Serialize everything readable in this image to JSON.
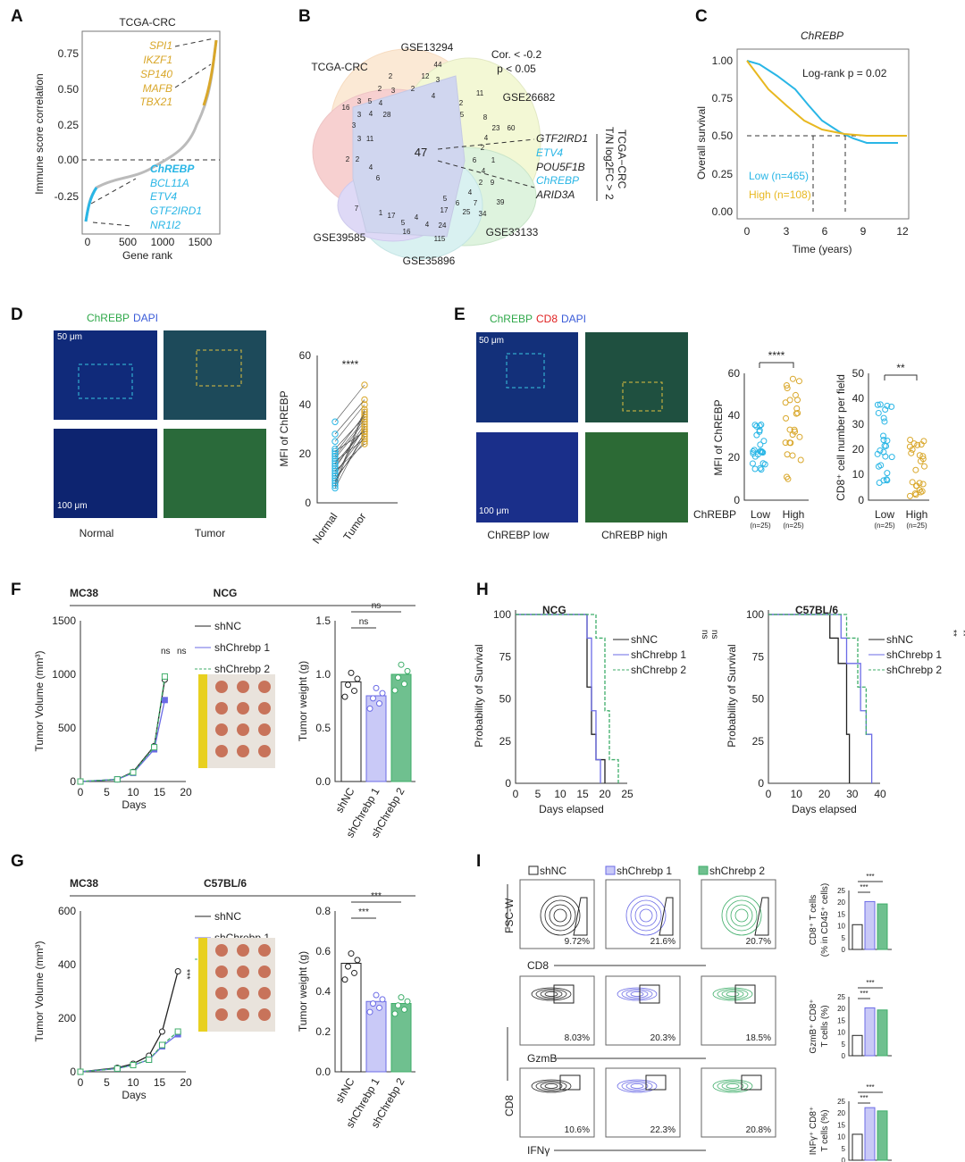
{
  "panel_labels": [
    "A",
    "B",
    "C",
    "D",
    "E",
    "F",
    "G",
    "H",
    "I"
  ],
  "A": {
    "title": "TCGA-CRC",
    "ylabel": "Immune score correlation",
    "xlabel": "Gene rank",
    "yticks": [
      "0.75",
      "0.50",
      "0.25",
      "0.00",
      "-0.25"
    ],
    "xticks": [
      "0",
      "500",
      "1000",
      "1500"
    ],
    "positive_genes": [
      "SPI1",
      "IKZF1",
      "SP140",
      "MAFB",
      "TBX21"
    ],
    "negative_genes": [
      "ChREBP",
      "BCL11A",
      "ETV4",
      "GTF2IRD1",
      "NR1I2"
    ],
    "colors": {
      "positive": "#d9a72a",
      "negative": "#29b6e6",
      "middle": "#bbbbbb"
    }
  },
  "B": {
    "sets": [
      "TCGA-CRC",
      "GSE13294",
      "GSE26682",
      "GSE33133",
      "GSE35896",
      "GSE39585"
    ],
    "criteria": [
      "Cor. < -0.2",
      "p < 0.05"
    ],
    "center_count": "47",
    "region_counts": [
      "44",
      "12",
      "2",
      "3",
      "2",
      "2",
      "3",
      "4",
      "11",
      "2",
      "16",
      "3",
      "5",
      "4",
      "28",
      "5",
      "8",
      "23",
      "60",
      "3",
      "4",
      "3",
      "3",
      "11",
      "4",
      "2",
      "2",
      "2",
      "4",
      "6",
      "6",
      "1",
      "4",
      "2",
      "9",
      "39",
      "4",
      "7",
      "5",
      "6",
      "7",
      "1",
      "17",
      "17",
      "25",
      "34",
      "5",
      "4",
      "16",
      "4",
      "24",
      "115"
    ],
    "genes": [
      {
        "name": "GTF2IRD1",
        "color": "#222222"
      },
      {
        "name": "ETV4",
        "color": "#29b6e6"
      },
      {
        "name": "POU5F1B",
        "color": "#222222"
      },
      {
        "name": "ChREBP",
        "color": "#29b6e6"
      },
      {
        "name": "ARID3A",
        "color": "#222222"
      }
    ],
    "side_label_1": "TCGA−CRC",
    "side_label_2": "T/N log2FC > 2"
  },
  "C": {
    "title": "ChREBP",
    "stat": "Log-rank p = 0.02",
    "ylabel": "Overall survival",
    "xlabel": "Time (years)",
    "yticks": [
      "1.00",
      "0.75",
      "0.50",
      "0.25",
      "0.00"
    ],
    "xticks": [
      "0",
      "3",
      "6",
      "9",
      "12"
    ],
    "legend": [
      {
        "label": "Low (n=465)",
        "color": "#29b6e6"
      },
      {
        "label": "High (n=108)",
        "color": "#e8b820"
      }
    ]
  },
  "D": {
    "stain_1": "ChREBP",
    "stain_2": "DAPI",
    "scale_top": "50 μm",
    "scale_bottom": "100 μm",
    "col_labels": [
      "Normal",
      "Tumor"
    ],
    "ylabel": "MFI of ChREBP",
    "yticks": [
      "60",
      "40",
      "20",
      "0"
    ],
    "xticks": [
      "Normal",
      "Tumor"
    ],
    "significance": "****"
  },
  "E": {
    "stain_1": "ChREBP",
    "stain_2": "CD8",
    "stain_3": "DAPI",
    "scale_top": "50 μm",
    "scale_bottom": "100 μm",
    "col_labels": [
      "ChREBP low",
      "ChREBP high"
    ],
    "group_label": "ChREBP",
    "groups": [
      "Low",
      "High"
    ],
    "n": [
      "(n=25)",
      "(n=25)"
    ],
    "plot1": {
      "ylabel": "MFI of ChREBP",
      "yticks": [
        "60",
        "40",
        "20",
        "0"
      ],
      "significance": "****"
    },
    "plot2": {
      "ylabel": "CD8⁺ cell number per field",
      "yticks": [
        "50",
        "40",
        "30",
        "20",
        "10",
        "0"
      ],
      "significance": "**"
    }
  },
  "F": {
    "model": "MC38",
    "host": "NCG",
    "ylabel": "Tumor Volume (mm³)",
    "yticks": [
      "1500",
      "1000",
      "500",
      "0"
    ],
    "xlabel": "Days",
    "xticks": [
      "0",
      "5",
      "10",
      "15",
      "20"
    ],
    "legend": [
      "shNC",
      "shChrebp 1",
      "shChrebp 2"
    ],
    "sig": [
      "ns",
      "ns"
    ],
    "bar_ylabel": "Tumor weight (g)",
    "bar_yticks": [
      "1.5",
      "1.0",
      "0.5",
      "0.0"
    ],
    "bar_sig": [
      "ns",
      "ns"
    ]
  },
  "G": {
    "model": "MC38",
    "host": "C57BL/6",
    "ylabel": "Tumor Volume (mm³)",
    "yticks": [
      "600",
      "400",
      "200",
      "0"
    ],
    "xlabel": "Days",
    "xticks": [
      "0",
      "5",
      "10",
      "15",
      "20"
    ],
    "legend": [
      "shNC",
      "shChrebp 1",
      "shChrebp 2"
    ],
    "sig": [
      "***",
      "***"
    ],
    "bar_ylabel": "Tumor weight (g)",
    "bar_yticks": [
      "0.8",
      "0.6",
      "0.4",
      "0.2",
      "0.0"
    ],
    "bar_sig": [
      "***",
      "***"
    ]
  },
  "H": {
    "left_title": "NCG",
    "right_title": "C57BL/6",
    "ylabel": "Probability of Survival",
    "yticks": [
      "100",
      "75",
      "50",
      "25",
      "0"
    ],
    "xlabel": "Days elapsed",
    "left_xticks": [
      "0",
      "5",
      "10",
      "15",
      "20",
      "25"
    ],
    "right_xticks": [
      "0",
      "10",
      "20",
      "30",
      "40"
    ],
    "legend": [
      "shNC",
      "shChrebp 1",
      "shChrebp 2"
    ],
    "left_sig": [
      "ns",
      "ns"
    ],
    "right_sig": [
      "**",
      "**"
    ]
  },
  "I": {
    "legend": [
      "shNC",
      "shChrebp 1",
      "shChrebp 2"
    ],
    "row_x_labels": [
      "CD8",
      "GzmB",
      "IFNγ"
    ],
    "y_labels": [
      "FSC-W",
      "CD8"
    ],
    "percentages": [
      [
        "9.72%",
        "21.6%",
        "20.7%"
      ],
      [
        "8.03%",
        "20.3%",
        "18.5%"
      ],
      [
        "10.6%",
        "22.3%",
        "20.8%"
      ]
    ],
    "bar_ylabels": [
      [
        "CD8⁺ T cells",
        "(% in CD45⁺ cells)"
      ],
      [
        "GzmB⁺ CD8⁺",
        "T cells (%)"
      ],
      [
        "INFγ⁺ CD8⁺",
        "T cells (%)"
      ]
    ],
    "bar_yticks": [
      "25",
      "20",
      "15",
      "10",
      "5",
      "0"
    ],
    "bar_sig": "***"
  },
  "colors": {
    "shNC": "#222222",
    "shChrebp1": "#6b6be6",
    "shChrebp2": "#3fae6a",
    "bar1": "#c9c9f7",
    "bar2": "#6fc08f"
  },
  "chart_data": [
    {
      "panel": "F-bar",
      "type": "bar",
      "categories": [
        "shNC",
        "shChrebp 1",
        "shChrebp 2"
      ],
      "values": [
        0.93,
        0.8,
        1.0
      ],
      "ylim": [
        0,
        1.5
      ],
      "ylabel": "Tumor weight (g)"
    },
    {
      "panel": "G-bar",
      "type": "bar",
      "categories": [
        "shNC",
        "shChrebp 1",
        "shChrebp 2"
      ],
      "values": [
        0.54,
        0.35,
        0.34
      ],
      "ylim": [
        0,
        0.8
      ],
      "ylabel": "Tumor weight (g)"
    },
    {
      "panel": "F-line",
      "type": "line",
      "x": [
        0,
        7,
        10,
        14,
        16
      ],
      "series": [
        {
          "name": "shNC",
          "values": [
            0,
            20,
            90,
            330,
            950
          ]
        },
        {
          "name": "shChrebp 1",
          "values": [
            0,
            20,
            80,
            300,
            760
          ]
        },
        {
          "name": "shChrebp 2",
          "values": [
            0,
            20,
            85,
            320,
            980
          ]
        }
      ],
      "ylim": [
        0,
        1500
      ],
      "xlim": [
        0,
        20
      ]
    },
    {
      "panel": "G-line",
      "type": "line",
      "x": [
        0,
        7,
        10,
        13,
        15.5,
        18.5
      ],
      "series": [
        {
          "name": "shNC",
          "values": [
            0,
            15,
            30,
            60,
            150,
            375
          ]
        },
        {
          "name": "shChrebp 1",
          "values": [
            0,
            12,
            25,
            45,
            95,
            140
          ]
        },
        {
          "name": "shChrebp 2",
          "values": [
            0,
            12,
            25,
            45,
            100,
            150
          ]
        }
      ],
      "ylim": [
        0,
        600
      ],
      "xlim": [
        0,
        20
      ]
    },
    {
      "panel": "I-bar-1",
      "type": "bar",
      "categories": [
        "shNC",
        "shChrebp 1",
        "shChrebp 2"
      ],
      "values": [
        10.5,
        20.3,
        19.3
      ],
      "ylim": [
        0,
        25
      ]
    },
    {
      "panel": "I-bar-2",
      "type": "bar",
      "categories": [
        "shNC",
        "shChrebp 1",
        "shChrebp 2"
      ],
      "values": [
        8.6,
        20.3,
        19.4
      ],
      "ylim": [
        0,
        25
      ]
    },
    {
      "panel": "I-bar-3",
      "type": "bar",
      "categories": [
        "shNC",
        "shChrebp 1",
        "shChrebp 2"
      ],
      "values": [
        11.0,
        22.3,
        20.9
      ],
      "ylim": [
        0,
        25
      ]
    }
  ]
}
